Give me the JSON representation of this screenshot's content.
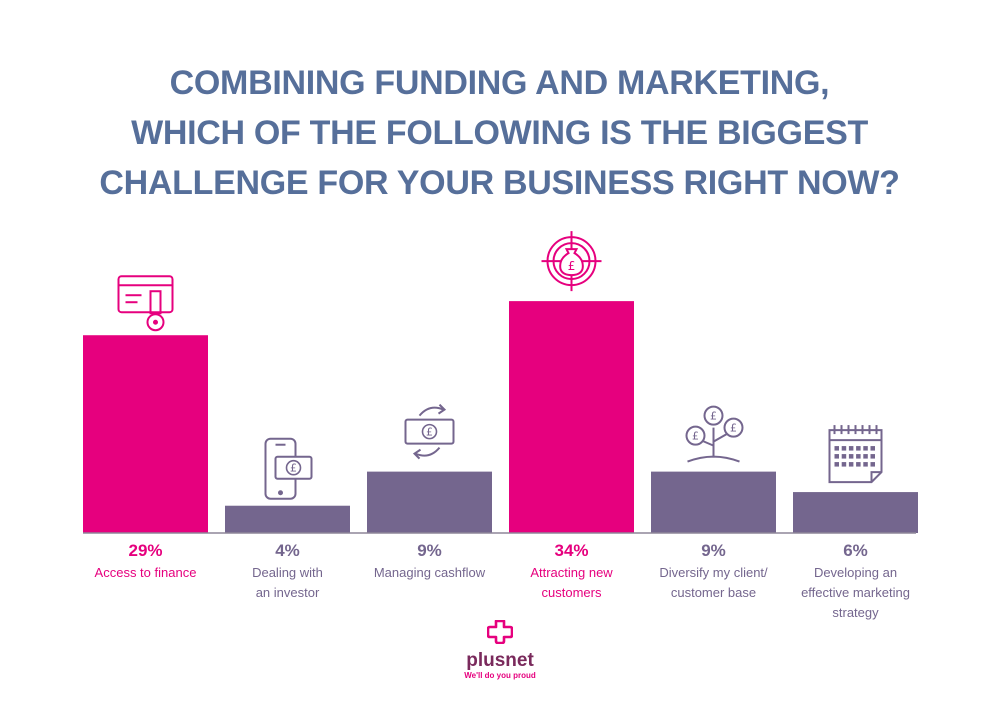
{
  "title_lines": [
    "COMBINING FUNDING AND MARKETING,",
    "WHICH OF THE FOLLOWING IS THE BIGGEST",
    "CHALLENGE FOR YOUR BUSINESS RIGHT NOW?"
  ],
  "colors": {
    "title": "#566f9a",
    "highlight": "#e6007e",
    "muted": "#74668e",
    "axis": "#8d8599"
  },
  "chart_data": {
    "type": "bar",
    "title": "COMBINING FUNDING AND MARKETING, WHICH OF THE FOLLOWING IS THE BIGGEST CHALLENGE FOR YOUR BUSINESS RIGHT NOW?",
    "xlabel": "",
    "ylabel": "",
    "ylim": [
      0,
      40
    ],
    "grid": false,
    "categories": [
      "Access to finance",
      "Dealing with an investor",
      "Managing cashflow",
      "Attracting new customers",
      "Diversify my client/ customer base",
      "Developing an effective marketing strategy"
    ],
    "values": [
      29,
      4,
      9,
      34,
      9,
      6
    ],
    "value_labels": [
      "29%",
      "4%",
      "9%",
      "34%",
      "9%",
      "6%"
    ],
    "label_lines": [
      [
        "Access to finance"
      ],
      [
        "Dealing with",
        "an investor"
      ],
      [
        "Managing cashflow"
      ],
      [
        "Attracting new",
        "customers"
      ],
      [
        "Diversify my client/",
        "customer base"
      ],
      [
        "Developing an",
        "effective marketing",
        "strategy"
      ]
    ],
    "highlighted": [
      true,
      false,
      false,
      true,
      false,
      false
    ],
    "icons": [
      "credit-card-key-icon",
      "phone-payment-icon",
      "cashflow-icon",
      "target-money-bag-icon",
      "money-tree-icon",
      "calendar-icon"
    ]
  },
  "brand": {
    "name": "plusnet",
    "tagline": "We'll do you proud",
    "logo_icon": "plus-cross-icon"
  }
}
